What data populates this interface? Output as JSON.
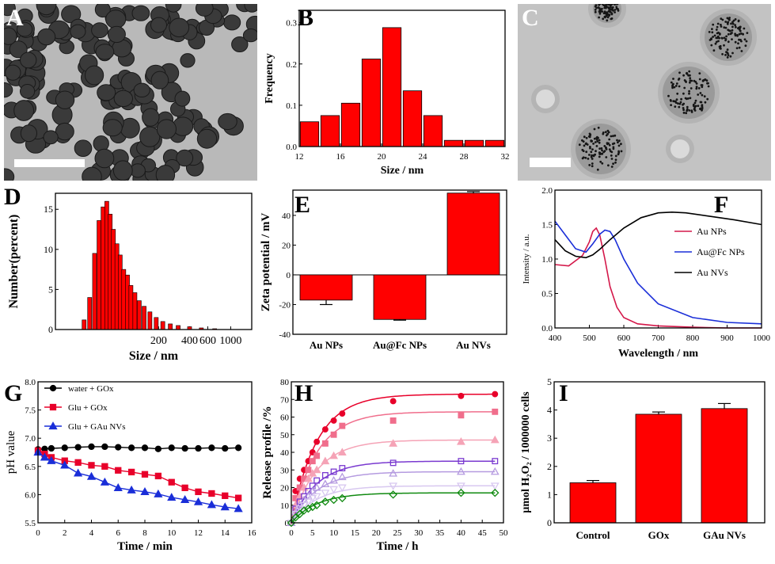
{
  "panel_letters": {
    "A": "A",
    "B": "B",
    "C": "C",
    "D": "D",
    "E": "E",
    "F": "F",
    "G": "G",
    "H": "H",
    "I": "I"
  },
  "colors": {
    "bar": "#ff0000",
    "red": "#e8002a",
    "blue": "#1a2ed8",
    "black": "#000000",
    "crimson": "#d4184a",
    "pink": "#f06e8c",
    "lightpink": "#f5a3b6",
    "violet": "#7a3ad0",
    "lavender": "#b59be0",
    "palelav": "#d8c8f0",
    "green": "#108a10"
  },
  "chart_data": [
    {
      "id": "B",
      "type": "bar",
      "xlabel": "Size / nm",
      "ylabel": "Frequency",
      "xlim": [
        12,
        32
      ],
      "ylim": [
        0,
        0.33
      ],
      "xticks": [
        "12",
        "16",
        "20",
        "24",
        "28",
        "32"
      ],
      "yticks": [
        "0.0",
        "0.1",
        "0.2",
        "0.3"
      ],
      "x": [
        13,
        15,
        17,
        19,
        21,
        23,
        25,
        27,
        29,
        31
      ],
      "values": [
        0.06,
        0.075,
        0.105,
        0.212,
        0.288,
        0.135,
        0.075,
        0.015,
        0.015,
        0.015
      ]
    },
    {
      "id": "D",
      "type": "bar",
      "xlabel": "Size / nm",
      "ylabel": "Number(percent)",
      "xscale": "log",
      "ylim": [
        0,
        17
      ],
      "xticks": [
        "200",
        "400",
        "600",
        "1000"
      ],
      "yticks": [
        "0",
        "5",
        "10",
        "15"
      ],
      "x": [
        38,
        43,
        48,
        53,
        58,
        63,
        68,
        73,
        79,
        85,
        92,
        100,
        108,
        118,
        130,
        145,
        165,
        190,
        220,
        260,
        310,
        400,
        520,
        700
      ],
      "values": [
        1.2,
        4.0,
        9.5,
        13.6,
        15.3,
        16.0,
        14.4,
        12.5,
        10.7,
        9.3,
        7.5,
        6.8,
        5.5,
        4.6,
        3.6,
        2.9,
        2.2,
        1.5,
        1.0,
        0.7,
        0.5,
        0.35,
        0.2,
        0.1
      ]
    },
    {
      "id": "E",
      "type": "bar",
      "ylabel": "Zeta potential / mV",
      "ylim": [
        -40,
        55
      ],
      "yticks": [
        "-40",
        "-20",
        "0",
        "20",
        "40"
      ],
      "categories": [
        "Au NPs",
        "Au@Fc NPs",
        "Au NVs"
      ],
      "values": [
        -17,
        -30,
        55
      ],
      "errors": [
        3,
        0.5,
        1
      ]
    },
    {
      "id": "F",
      "type": "line",
      "xlabel": "Wavelength / nm",
      "ylabel": "Intensity / a.u.",
      "xlim": [
        400,
        1000
      ],
      "ylim": [
        0,
        2.0
      ],
      "xticks": [
        "400",
        "500",
        "600",
        "700",
        "800",
        "900",
        "1000"
      ],
      "yticks": [
        "0.0",
        "0.5",
        "1.0",
        "1.5",
        "2.0"
      ],
      "legend": "right",
      "series": [
        {
          "name": "Au NPs",
          "color": "#d4184a",
          "x": [
            400,
            440,
            480,
            500,
            510,
            520,
            530,
            545,
            560,
            580,
            600,
            640,
            700,
            800,
            900,
            1000
          ],
          "y": [
            0.92,
            0.9,
            1.05,
            1.25,
            1.4,
            1.45,
            1.35,
            1.0,
            0.6,
            0.3,
            0.15,
            0.06,
            0.03,
            0.01,
            0.0,
            0.0
          ]
        },
        {
          "name": "Au@Fc NPs",
          "color": "#1a2ed8",
          "x": [
            400,
            430,
            460,
            490,
            510,
            530,
            545,
            560,
            575,
            600,
            640,
            700,
            800,
            900,
            1000
          ],
          "y": [
            1.55,
            1.35,
            1.15,
            1.1,
            1.22,
            1.36,
            1.42,
            1.4,
            1.28,
            1.0,
            0.65,
            0.35,
            0.15,
            0.08,
            0.06
          ]
        },
        {
          "name": "Au NVs",
          "color": "#000000",
          "x": [
            400,
            430,
            460,
            490,
            510,
            530,
            560,
            600,
            650,
            700,
            740,
            780,
            850,
            920,
            1000
          ],
          "y": [
            1.28,
            1.12,
            1.04,
            1.02,
            1.06,
            1.14,
            1.28,
            1.45,
            1.6,
            1.67,
            1.68,
            1.67,
            1.62,
            1.57,
            1.5
          ]
        }
      ]
    },
    {
      "id": "G",
      "type": "line",
      "xlabel": "Time / min",
      "ylabel": "pH value",
      "xlim": [
        0,
        16
      ],
      "ylim": [
        5.5,
        8.0
      ],
      "xticks": [
        "0",
        "2",
        "4",
        "6",
        "8",
        "10",
        "12",
        "14",
        "16"
      ],
      "yticks": [
        "5.5",
        "6.0",
        "6.5",
        "7.0",
        "7.5",
        "8.0"
      ],
      "legend": "top-left",
      "series": [
        {
          "name": "water + GOx",
          "color": "#000000",
          "marker": "circle",
          "x": [
            0,
            0.5,
            1,
            2,
            3,
            4,
            5,
            6,
            7,
            8,
            9,
            10,
            11,
            12,
            13,
            14,
            15
          ],
          "y": [
            6.8,
            6.81,
            6.82,
            6.83,
            6.84,
            6.85,
            6.85,
            6.84,
            6.83,
            6.83,
            6.81,
            6.83,
            6.82,
            6.82,
            6.83,
            6.82,
            6.83
          ]
        },
        {
          "name": "Glu + GOx",
          "color": "#e8002a",
          "marker": "square",
          "x": [
            0,
            0.5,
            1,
            2,
            3,
            4,
            5,
            6,
            7,
            8,
            9,
            10,
            11,
            12,
            13,
            14,
            15
          ],
          "y": [
            6.78,
            6.72,
            6.66,
            6.6,
            6.57,
            6.52,
            6.5,
            6.43,
            6.4,
            6.36,
            6.33,
            6.22,
            6.12,
            6.05,
            6.02,
            5.98,
            5.94
          ]
        },
        {
          "name": "Glu + GAu NVs",
          "color": "#1a2ed8",
          "marker": "triangle",
          "x": [
            0,
            0.5,
            1,
            2,
            3,
            4,
            5,
            6,
            7,
            8,
            9,
            10,
            11,
            12,
            13,
            14,
            15
          ],
          "y": [
            6.75,
            6.66,
            6.6,
            6.52,
            6.38,
            6.32,
            6.22,
            6.12,
            6.08,
            6.05,
            6.01,
            5.95,
            5.91,
            5.87,
            5.82,
            5.78,
            5.75
          ]
        }
      ]
    },
    {
      "id": "H",
      "type": "scatter",
      "xlabel": "Time / h",
      "ylabel": "Release profile /%",
      "xlim": [
        0,
        50
      ],
      "ylim": [
        0,
        80
      ],
      "xticks": [
        "0",
        "5",
        "10",
        "15",
        "20",
        "25",
        "30",
        "35",
        "40",
        "45",
        "50"
      ],
      "yticks": [
        "0",
        "10",
        "20",
        "30",
        "40",
        "50",
        "60",
        "70",
        "80"
      ],
      "x": [
        0,
        1,
        2,
        3,
        4,
        5,
        6,
        8,
        10,
        12,
        24,
        40,
        48
      ],
      "series": [
        {
          "color": "#e8002a",
          "marker": "circle",
          "filled": true,
          "y": [
            0,
            18,
            25,
            30,
            35,
            40,
            46,
            53,
            58,
            62,
            69,
            72,
            73
          ]
        },
        {
          "color": "#f06e8c",
          "marker": "square",
          "filled": true,
          "y": [
            0,
            14,
            20,
            25,
            30,
            35,
            38,
            45,
            50,
            55,
            58,
            61,
            63
          ]
        },
        {
          "color": "#f5a3b6",
          "marker": "triangle",
          "filled": true,
          "y": [
            0,
            10,
            15,
            20,
            25,
            28,
            30,
            35,
            38,
            40,
            45,
            46,
            47
          ]
        },
        {
          "color": "#7a3ad0",
          "marker": "square",
          "filled": false,
          "y": [
            0,
            8,
            12,
            15,
            18,
            21,
            24,
            27,
            29,
            31,
            34,
            35,
            35
          ]
        },
        {
          "color": "#b59be0",
          "marker": "triangle",
          "filled": false,
          "y": [
            0,
            6,
            10,
            13,
            15,
            18,
            20,
            22,
            24,
            26,
            28,
            29,
            29
          ]
        },
        {
          "color": "#d8c8f0",
          "marker": "triangle-down",
          "filled": false,
          "y": [
            0,
            5,
            8,
            10,
            12,
            14,
            15,
            17,
            19,
            20,
            21,
            21,
            21
          ]
        },
        {
          "color": "#108a10",
          "marker": "diamond",
          "filled": false,
          "y": [
            0,
            3,
            5,
            7,
            8,
            9,
            10,
            12,
            13,
            14,
            16,
            17,
            17
          ]
        }
      ]
    },
    {
      "id": "I",
      "type": "bar",
      "ylabel": "μmol H₂O₂ / 1000000 cells",
      "ylim": [
        0,
        5
      ],
      "yticks": [
        "0",
        "1",
        "2",
        "3",
        "4",
        "5"
      ],
      "categories": [
        "Control",
        "GOx",
        "GAu NVs"
      ],
      "values": [
        1.42,
        3.85,
        4.05
      ],
      "errors": [
        0.08,
        0.08,
        0.18
      ]
    }
  ]
}
